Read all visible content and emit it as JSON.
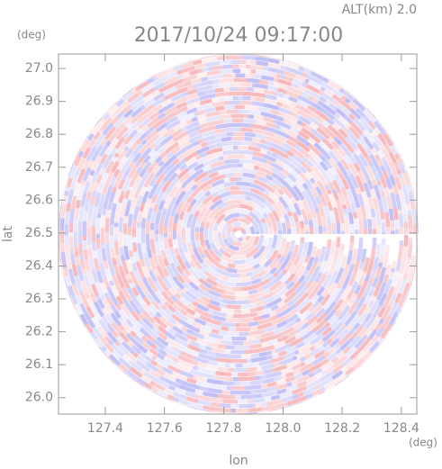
{
  "chart_data": {
    "type": "ppi",
    "title": "2017/10/24 09:17:00",
    "annotation": "ALT(km) 2.0",
    "xlabel": "lon",
    "ylabel": "lat",
    "xunit": "(deg)",
    "yunit": "(deg)",
    "xlim": [
      127.242,
      128.452
    ],
    "ylim": [
      25.95,
      27.044
    ],
    "xticks": [
      127.4,
      127.6,
      127.8,
      {
        "value": 128.0,
        "label": "128.0"
      },
      128.2,
      128.4
    ],
    "yticks": [
      {
        "value": 26.0,
        "label": "26.0"
      },
      26.1,
      26.2,
      26.3,
      26.4,
      26.5,
      26.6,
      26.7,
      26.8,
      26.9,
      {
        "value": 27.0,
        "label": "27.0"
      }
    ],
    "colors": [
      "#f4a0a4",
      "#a8a8f4"
    ]
  }
}
